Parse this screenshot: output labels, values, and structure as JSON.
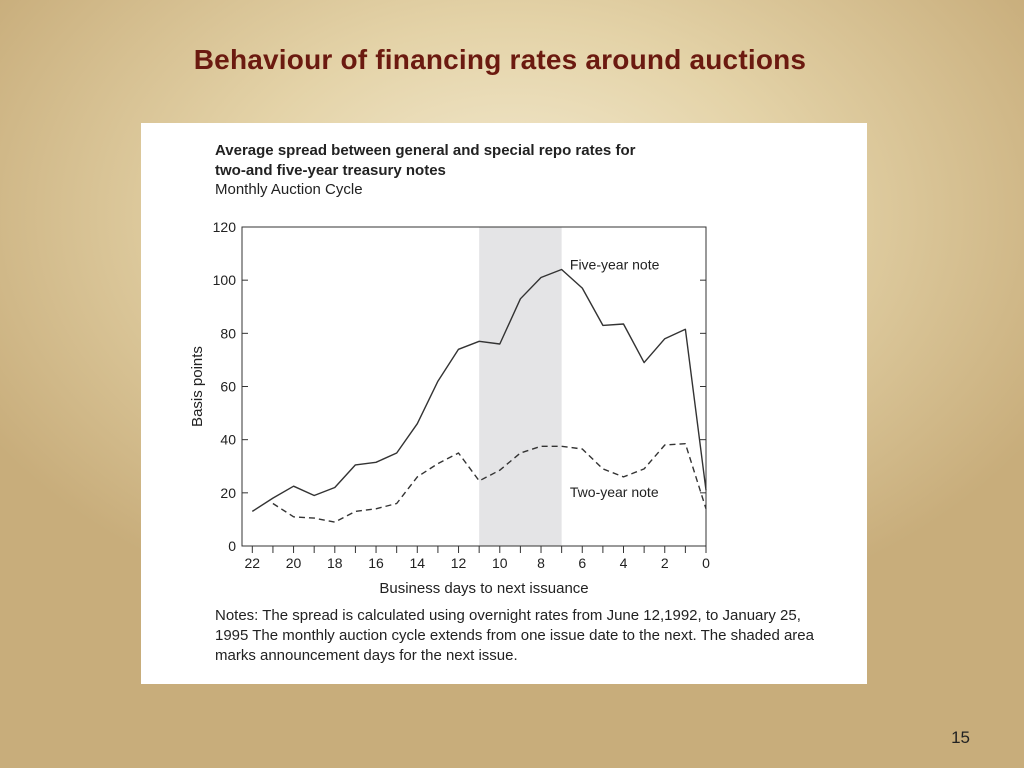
{
  "slide": {
    "title": "Behaviour of financing rates around auctions",
    "page_number": "15"
  },
  "figure": {
    "title": "Average spread between general and special repo rates for two-and five-year treasury notes",
    "subtitle": "Monthly Auction Cycle",
    "notes": "Notes: The spread is calculated using overnight rates from June 12,1992, to January 25, 1995 The monthly auction cycle extends from one issue date to the next. The shaded area marks announcement days for the next issue."
  },
  "chart_data": {
    "type": "line",
    "xlabel": "Business days to next issuance",
    "ylabel": "Basis points",
    "xlim": [
      22.5,
      0
    ],
    "ylim": [
      0,
      120
    ],
    "x_ticks": [
      22,
      20,
      18,
      16,
      14,
      12,
      10,
      8,
      6,
      4,
      2,
      0
    ],
    "y_ticks": [
      0,
      20,
      40,
      60,
      80,
      100,
      120
    ],
    "shaded_region": [
      11,
      7
    ],
    "x": [
      22,
      21,
      20,
      19,
      18,
      17,
      16,
      15,
      14,
      13,
      12,
      11,
      10,
      9,
      8,
      7,
      6,
      5,
      4,
      3,
      2,
      1,
      0
    ],
    "series": [
      {
        "name": "Five-year note",
        "style": "solid",
        "values": [
          13,
          18,
          22.5,
          19,
          22,
          30.5,
          31.5,
          35,
          46,
          62,
          74,
          77,
          76,
          93,
          101,
          104,
          97,
          83,
          83.5,
          69,
          78,
          81.5,
          21
        ]
      },
      {
        "name": "Two-year note",
        "style": "dashed",
        "values": [
          null,
          16,
          11,
          10.5,
          9,
          13,
          14,
          16,
          26,
          31,
          35,
          24.5,
          28.5,
          35,
          37.5,
          37.5,
          36.5,
          29,
          26,
          29,
          38,
          38.5,
          14
        ]
      }
    ],
    "colors": {
      "line": "#333333",
      "shade": "#e4e4e6"
    }
  }
}
